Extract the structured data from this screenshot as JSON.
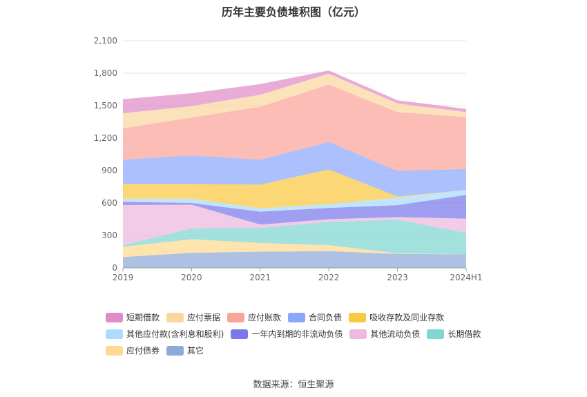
{
  "chart_data": {
    "type": "area",
    "stacked": true,
    "title": "历年主要负债堆积图（亿元）",
    "source": "数据来源：恒生聚源",
    "x": [
      "2019",
      "2020",
      "2021",
      "2022",
      "2023",
      "2024H1"
    ],
    "ylim": [
      0,
      2100
    ],
    "yticks": [
      "0",
      "300",
      "600",
      "900",
      "1,200",
      "1,500",
      "1,800",
      "2,100"
    ],
    "grid": true,
    "legend_position": "bottom",
    "series": [
      {
        "name": "其它",
        "color": "#8eaad8",
        "values": [
          100,
          140,
          150,
          155,
          130,
          125
        ]
      },
      {
        "name": "应付债券",
        "color": "#ffd98f",
        "values": [
          95,
          125,
          80,
          55,
          5,
          0
        ]
      },
      {
        "name": "长期借款",
        "color": "#7fd6d3",
        "values": [
          15,
          100,
          140,
          215,
          310,
          200
        ]
      },
      {
        "name": "其他流动负债",
        "color": "#edb9dd",
        "values": [
          370,
          220,
          30,
          25,
          25,
          130
        ]
      },
      {
        "name": "一年内到期的非流动负债",
        "color": "#7a78ec",
        "values": [
          30,
          15,
          120,
          105,
          110,
          220
        ]
      },
      {
        "name": "其他应付款(含利息和股利)",
        "color": "#a9ddfb",
        "values": [
          30,
          40,
          30,
          35,
          70,
          45
        ]
      },
      {
        "name": "吸收存款及同业存款",
        "color": "#fbc841",
        "values": [
          135,
          135,
          220,
          320,
          10,
          0
        ]
      },
      {
        "name": "合同负债",
        "color": "#8aa7fb",
        "values": [
          225,
          265,
          230,
          255,
          235,
          195
        ]
      },
      {
        "name": "应付账款",
        "color": "#f9a499",
        "values": [
          290,
          350,
          490,
          530,
          545,
          480
        ]
      },
      {
        "name": "应付票据",
        "color": "#fbd79f",
        "values": [
          140,
          105,
          110,
          100,
          80,
          45
        ]
      },
      {
        "name": "短期借款",
        "color": "#df8cc8",
        "values": [
          130,
          120,
          100,
          30,
          30,
          30
        ]
      }
    ]
  },
  "legend_order": [
    [
      "短期借款",
      "应付票据",
      "应付账款",
      "合同负债",
      "吸收存款及同业存款"
    ],
    [
      "其他应付款(含利息和股利)",
      "一年内到期的非流动负债",
      "其他流动负债",
      "长期借款"
    ],
    [
      "应付债券",
      "其它"
    ]
  ]
}
